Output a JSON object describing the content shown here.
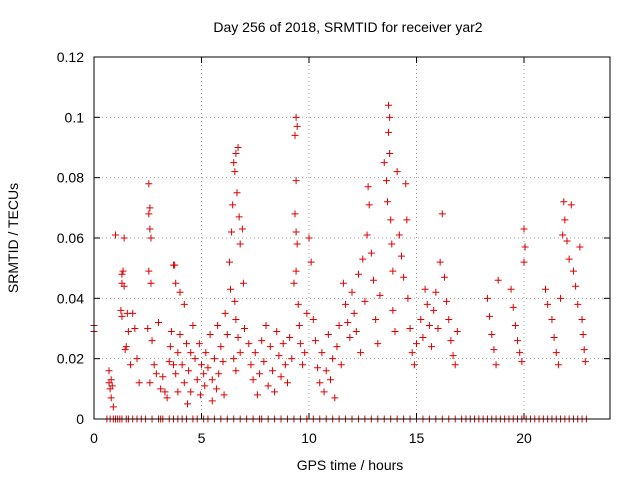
{
  "chart_data": {
    "type": "scatter",
    "title": "Day 256 of 2018, SRMTID for receiver yar2",
    "xlabel": "GPS time / hours",
    "ylabel": "SRMTID / TECUs",
    "xlim": [
      0,
      24
    ],
    "ylim": [
      0,
      0.12
    ],
    "xticks": [
      0,
      5,
      10,
      15,
      20
    ],
    "xtick_labels": [
      "0",
      "5",
      "10",
      "15",
      "20"
    ],
    "yticks": [
      0,
      0.02,
      0.04,
      0.06,
      0.08,
      0.1,
      0.12
    ],
    "ytick_labels": [
      "0",
      "0.02",
      "0.04",
      "0.06",
      "0.08",
      "0.1",
      "0.12"
    ],
    "grid": true,
    "marker": "+",
    "color": "#e00000",
    "series": [
      {
        "name": "SRMTID",
        "points": [
          [
            0.0,
            0.031
          ],
          [
            0.0,
            0.029
          ],
          [
            0.7,
            0.016
          ],
          [
            0.7,
            0.012
          ],
          [
            0.75,
            0.01
          ],
          [
            0.8,
            0.013
          ],
          [
            0.8,
            0.007
          ],
          [
            0.85,
            0.011
          ],
          [
            0.9,
            0.004
          ],
          [
            1.0,
            0.061
          ],
          [
            1.3,
            0.048
          ],
          [
            1.35,
            0.049
          ],
          [
            1.3,
            0.045
          ],
          [
            1.25,
            0.036
          ],
          [
            1.3,
            0.034
          ],
          [
            1.4,
            0.06
          ],
          [
            1.4,
            0.044
          ],
          [
            1.5,
            0.024
          ],
          [
            1.55,
            0.035
          ],
          [
            1.45,
            0.023
          ],
          [
            1.6,
            0.029
          ],
          [
            1.8,
            0.035
          ],
          [
            1.7,
            0.018
          ],
          [
            1.9,
            0.03
          ],
          [
            2.0,
            0.02
          ],
          [
            2.1,
            0.012
          ],
          [
            2.55,
            0.078
          ],
          [
            2.6,
            0.07
          ],
          [
            2.55,
            0.068
          ],
          [
            2.6,
            0.063
          ],
          [
            2.65,
            0.06
          ],
          [
            2.55,
            0.049
          ],
          [
            2.65,
            0.045
          ],
          [
            2.5,
            0.03
          ],
          [
            2.7,
            0.026
          ],
          [
            2.8,
            0.018
          ],
          [
            2.9,
            0.015
          ],
          [
            3.0,
            0.032
          ],
          [
            2.6,
            0.012
          ],
          [
            3.1,
            0.01
          ],
          [
            3.2,
            0.014
          ],
          [
            3.3,
            0.009
          ],
          [
            3.4,
            0.007
          ],
          [
            3.5,
            0.019
          ],
          [
            3.55,
            0.024
          ],
          [
            3.6,
            0.029
          ],
          [
            3.7,
            0.018
          ],
          [
            3.7,
            0.051
          ],
          [
            3.75,
            0.051
          ],
          [
            3.8,
            0.045
          ],
          [
            3.8,
            0.015
          ],
          [
            3.9,
            0.022
          ],
          [
            3.9,
            0.009
          ],
          [
            4.0,
            0.042
          ],
          [
            4.0,
            0.028
          ],
          [
            4.1,
            0.018
          ],
          [
            4.2,
            0.038
          ],
          [
            4.2,
            0.012
          ],
          [
            4.3,
            0.025
          ],
          [
            4.35,
            0.005
          ],
          [
            4.4,
            0.016
          ],
          [
            4.5,
            0.022
          ],
          [
            4.5,
            0.009
          ],
          [
            4.6,
            0.031
          ],
          [
            4.7,
            0.02
          ],
          [
            4.8,
            0.013
          ],
          [
            4.9,
            0.025
          ],
          [
            4.95,
            0.008
          ],
          [
            5.0,
            0.018
          ],
          [
            5.1,
            0.015
          ],
          [
            5.15,
            0.011
          ],
          [
            5.2,
            0.022
          ],
          [
            5.3,
            0.017
          ],
          [
            5.4,
            0.028
          ],
          [
            5.5,
            0.013
          ],
          [
            5.5,
            0.006
          ],
          [
            5.6,
            0.02
          ],
          [
            5.7,
            0.01
          ],
          [
            5.75,
            0.031
          ],
          [
            5.8,
            0.015
          ],
          [
            5.9,
            0.024
          ],
          [
            6.0,
            0.019
          ],
          [
            6.05,
            0.008
          ],
          [
            6.1,
            0.035
          ],
          [
            6.2,
            0.028
          ],
          [
            6.3,
            0.052
          ],
          [
            6.35,
            0.043
          ],
          [
            6.4,
            0.062
          ],
          [
            6.45,
            0.071
          ],
          [
            6.5,
            0.085
          ],
          [
            6.55,
            0.082
          ],
          [
            6.6,
            0.088
          ],
          [
            6.65,
            0.075
          ],
          [
            6.7,
            0.09
          ],
          [
            6.75,
            0.067
          ],
          [
            6.8,
            0.058
          ],
          [
            6.55,
            0.039
          ],
          [
            6.6,
            0.033
          ],
          [
            6.7,
            0.027
          ],
          [
            6.8,
            0.022
          ],
          [
            6.9,
            0.063
          ],
          [
            6.95,
            0.045
          ],
          [
            6.5,
            0.02
          ],
          [
            6.6,
            0.016
          ],
          [
            7.0,
            0.03
          ],
          [
            7.2,
            0.025
          ],
          [
            7.3,
            0.018
          ],
          [
            7.4,
            0.013
          ],
          [
            7.5,
            0.022
          ],
          [
            7.6,
            0.008
          ],
          [
            7.7,
            0.015
          ],
          [
            7.8,
            0.026
          ],
          [
            7.9,
            0.019
          ],
          [
            8.0,
            0.031
          ],
          [
            8.1,
            0.011
          ],
          [
            8.2,
            0.024
          ],
          [
            8.3,
            0.016
          ],
          [
            8.4,
            0.009
          ],
          [
            8.5,
            0.029
          ],
          [
            8.6,
            0.021
          ],
          [
            8.7,
            0.014
          ],
          [
            8.8,
            0.025
          ],
          [
            8.9,
            0.018
          ],
          [
            9.0,
            0.012
          ],
          [
            9.1,
            0.027
          ],
          [
            9.2,
            0.02
          ],
          [
            9.4,
            0.1
          ],
          [
            9.45,
            0.097
          ],
          [
            9.35,
            0.094
          ],
          [
            9.4,
            0.079
          ],
          [
            9.35,
            0.068
          ],
          [
            9.4,
            0.062
          ],
          [
            9.45,
            0.058
          ],
          [
            9.4,
            0.049
          ],
          [
            9.3,
            0.045
          ],
          [
            9.5,
            0.038
          ],
          [
            9.55,
            0.031
          ],
          [
            9.6,
            0.025
          ],
          [
            9.7,
            0.018
          ],
          [
            9.8,
            0.022
          ],
          [
            9.9,
            0.035
          ],
          [
            10.0,
            0.06
          ],
          [
            10.1,
            0.052
          ],
          [
            10.2,
            0.033
          ],
          [
            10.3,
            0.026
          ],
          [
            10.4,
            0.017
          ],
          [
            10.5,
            0.012
          ],
          [
            10.6,
            0.022
          ],
          [
            10.7,
            0.009
          ],
          [
            10.8,
            0.016
          ],
          [
            10.9,
            0.028
          ],
          [
            11.0,
            0.013
          ],
          [
            11.1,
            0.02
          ],
          [
            11.2,
            0.007
          ],
          [
            11.3,
            0.024
          ],
          [
            11.4,
            0.031
          ],
          [
            11.5,
            0.018
          ],
          [
            11.6,
            0.045
          ],
          [
            11.7,
            0.038
          ],
          [
            11.8,
            0.032
          ],
          [
            11.9,
            0.027
          ],
          [
            12.0,
            0.042
          ],
          [
            12.1,
            0.035
          ],
          [
            12.2,
            0.029
          ],
          [
            12.3,
            0.048
          ],
          [
            12.4,
            0.022
          ],
          [
            12.5,
            0.053
          ],
          [
            12.6,
            0.039
          ],
          [
            12.7,
            0.061
          ],
          [
            12.75,
            0.077
          ],
          [
            12.8,
            0.071
          ],
          [
            12.9,
            0.055
          ],
          [
            13.0,
            0.046
          ],
          [
            13.1,
            0.033
          ],
          [
            13.2,
            0.025
          ],
          [
            13.3,
            0.041
          ],
          [
            13.5,
            0.085
          ],
          [
            13.6,
            0.079
          ],
          [
            13.65,
            0.072
          ],
          [
            13.7,
            0.104
          ],
          [
            13.75,
            0.1
          ],
          [
            13.7,
            0.095
          ],
          [
            13.75,
            0.088
          ],
          [
            13.8,
            0.066
          ],
          [
            13.85,
            0.058
          ],
          [
            13.9,
            0.049
          ],
          [
            13.9,
            0.036
          ],
          [
            14.0,
            0.029
          ],
          [
            14.1,
            0.082
          ],
          [
            14.2,
            0.061
          ],
          [
            14.3,
            0.054
          ],
          [
            14.4,
            0.047
          ],
          [
            14.5,
            0.078
          ],
          [
            14.55,
            0.066
          ],
          [
            14.6,
            0.04
          ],
          [
            14.7,
            0.03
          ],
          [
            14.8,
            0.022
          ],
          [
            14.9,
            0.018
          ],
          [
            15.0,
            0.025
          ],
          [
            15.2,
            0.033
          ],
          [
            15.3,
            0.027
          ],
          [
            15.4,
            0.043
          ],
          [
            15.5,
            0.038
          ],
          [
            15.6,
            0.031
          ],
          [
            15.7,
            0.024
          ],
          [
            15.8,
            0.036
          ],
          [
            15.9,
            0.042
          ],
          [
            16.0,
            0.03
          ],
          [
            16.1,
            0.052
          ],
          [
            16.2,
            0.068
          ],
          [
            16.3,
            0.047
          ],
          [
            16.4,
            0.039
          ],
          [
            16.5,
            0.033
          ],
          [
            16.6,
            0.026
          ],
          [
            16.7,
            0.021
          ],
          [
            16.8,
            0.018
          ],
          [
            16.9,
            0.029
          ],
          [
            18.3,
            0.04
          ],
          [
            18.4,
            0.034
          ],
          [
            18.5,
            0.028
          ],
          [
            18.6,
            0.023
          ],
          [
            18.7,
            0.018
          ],
          [
            18.8,
            0.046
          ],
          [
            19.4,
            0.043
          ],
          [
            19.5,
            0.037
          ],
          [
            19.6,
            0.031
          ],
          [
            19.7,
            0.026
          ],
          [
            19.8,
            0.022
          ],
          [
            19.9,
            0.019
          ],
          [
            20.0,
            0.063
          ],
          [
            20.05,
            0.057
          ],
          [
            20.0,
            0.052
          ],
          [
            21.0,
            0.043
          ],
          [
            21.1,
            0.038
          ],
          [
            21.3,
            0.033
          ],
          [
            21.4,
            0.027
          ],
          [
            21.5,
            0.022
          ],
          [
            21.6,
            0.018
          ],
          [
            21.7,
            0.04
          ],
          [
            21.8,
            0.061
          ],
          [
            21.85,
            0.072
          ],
          [
            21.9,
            0.066
          ],
          [
            22.0,
            0.059
          ],
          [
            22.1,
            0.053
          ],
          [
            22.2,
            0.071
          ],
          [
            22.3,
            0.049
          ],
          [
            22.4,
            0.044
          ],
          [
            22.5,
            0.038
          ],
          [
            22.6,
            0.057
          ],
          [
            22.7,
            0.033
          ],
          [
            22.75,
            0.028
          ],
          [
            22.8,
            0.023
          ],
          [
            22.85,
            0.019
          ]
        ],
        "zero_points_x": [
          0.6,
          0.75,
          0.9,
          1.0,
          1.1,
          1.2,
          1.3,
          1.5,
          1.6,
          1.8,
          2.0,
          2.2,
          2.4,
          2.7,
          3.0,
          3.1,
          3.2,
          3.5,
          3.7,
          3.9,
          4.1,
          4.3,
          4.6,
          4.8,
          5.1,
          5.3,
          5.6,
          5.9,
          6.2,
          6.5,
          6.8,
          7.1,
          7.4,
          7.7,
          7.8,
          8.1,
          8.4,
          8.7,
          9.0,
          9.3,
          9.6,
          9.9,
          10.2,
          10.5,
          10.8,
          11.1,
          11.4,
          11.7,
          12.0,
          12.3,
          12.6,
          12.9,
          13.2,
          13.5,
          13.8,
          14.1,
          14.4,
          14.7,
          15.0,
          15.3,
          15.6,
          15.9,
          16.2,
          16.5,
          16.8,
          17.1,
          17.3,
          17.5,
          17.7,
          17.9,
          18.1,
          18.3,
          18.5,
          18.7,
          18.9,
          19.1,
          19.3,
          19.5,
          19.7,
          19.9,
          20.1,
          20.3,
          20.5,
          20.7,
          20.9,
          21.1,
          21.3,
          21.5,
          21.7,
          21.9,
          22.1,
          22.3,
          22.5,
          22.7,
          22.9
        ]
      }
    ]
  }
}
